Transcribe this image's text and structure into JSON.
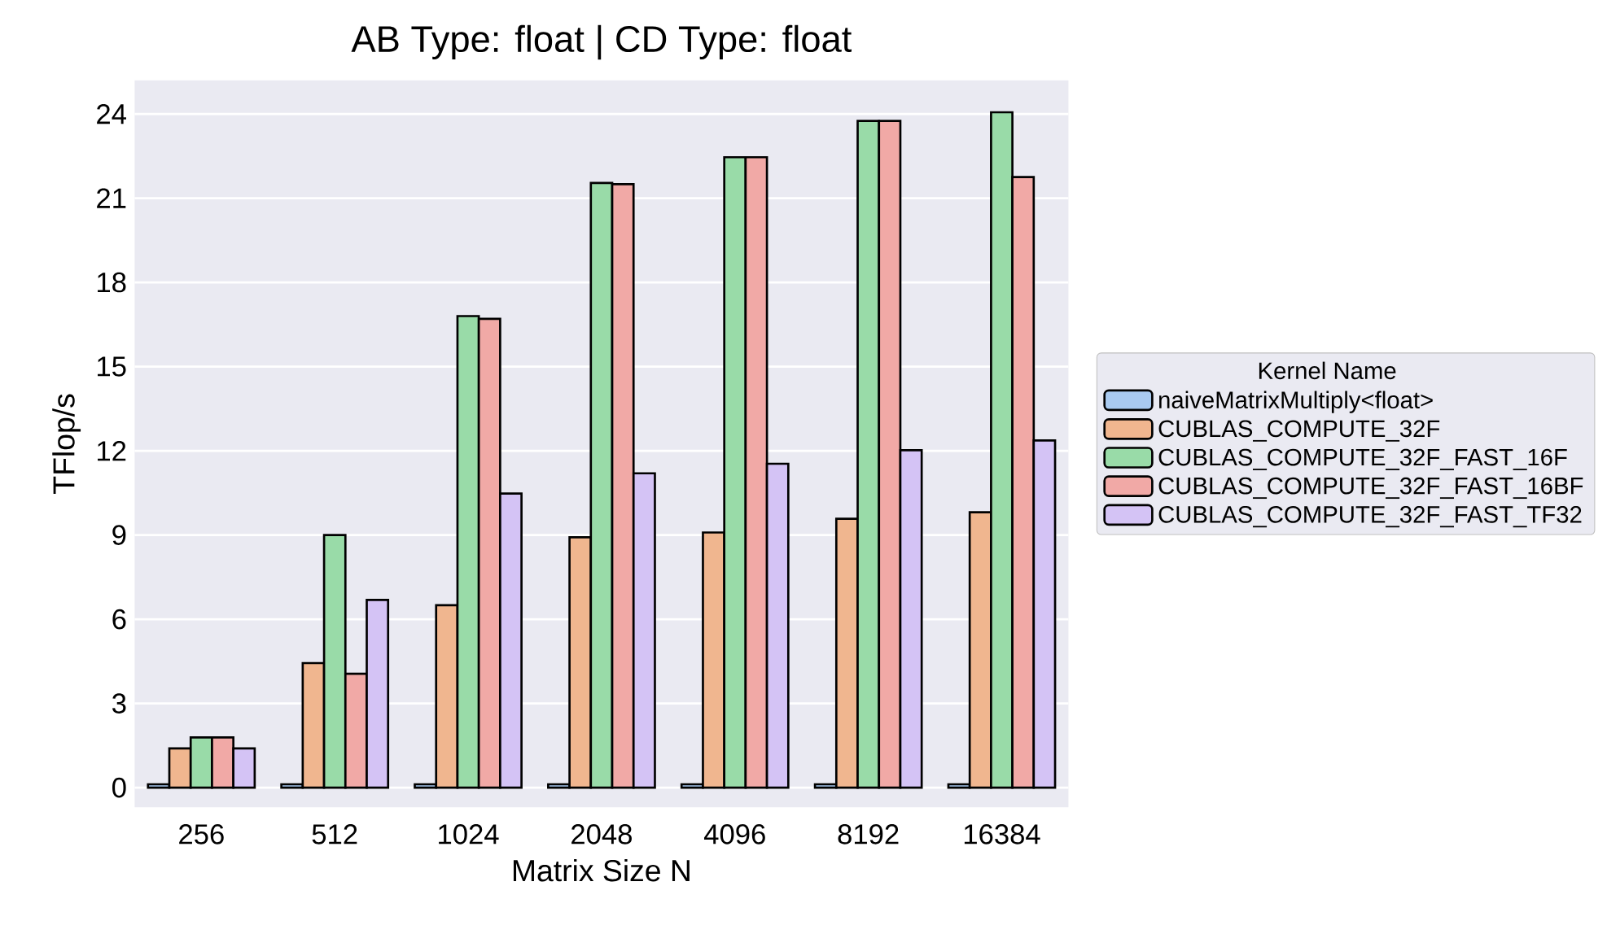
{
  "chart_data": {
    "type": "bar",
    "title": "AB Type: float | CD Type: float",
    "xlabel": "Matrix Size N",
    "ylabel": "TFlop/s",
    "legend_title": "Kernel Name",
    "categories": [
      "256",
      "512",
      "1024",
      "2048",
      "4096",
      "8192",
      "16384"
    ],
    "series": [
      {
        "name": "naiveMatrixMultiply<float>",
        "color": "#a9caf0",
        "values": [
          0.12,
          0.12,
          0.12,
          0.12,
          0.12,
          0.12,
          0.12
        ]
      },
      {
        "name": "CUBLAS_COMPUTE_32F",
        "color": "#f0b68f",
        "values": [
          1.4,
          4.44,
          6.5,
          8.92,
          9.09,
          9.58,
          9.81
        ]
      },
      {
        "name": "CUBLAS_COMPUTE_32F_FAST_16F",
        "color": "#99dba8",
        "values": [
          1.79,
          9.0,
          16.8,
          21.54,
          22.46,
          23.75,
          24.06
        ]
      },
      {
        "name": "CUBLAS_COMPUTE_32F_FAST_16BF",
        "color": "#f1a9a6",
        "values": [
          1.79,
          4.06,
          16.7,
          21.5,
          22.46,
          23.75,
          21.75
        ]
      },
      {
        "name": "CUBLAS_COMPUTE_32F_FAST_TF32",
        "color": "#d4c3f5",
        "values": [
          1.4,
          6.69,
          10.48,
          11.2,
          11.54,
          12.02,
          12.37
        ]
      }
    ],
    "ylim": [
      -0.7,
      25.2
    ],
    "yticks": [
      0,
      3,
      6,
      9,
      12,
      15,
      18,
      21,
      24
    ],
    "grid": "y",
    "legend": "right"
  }
}
